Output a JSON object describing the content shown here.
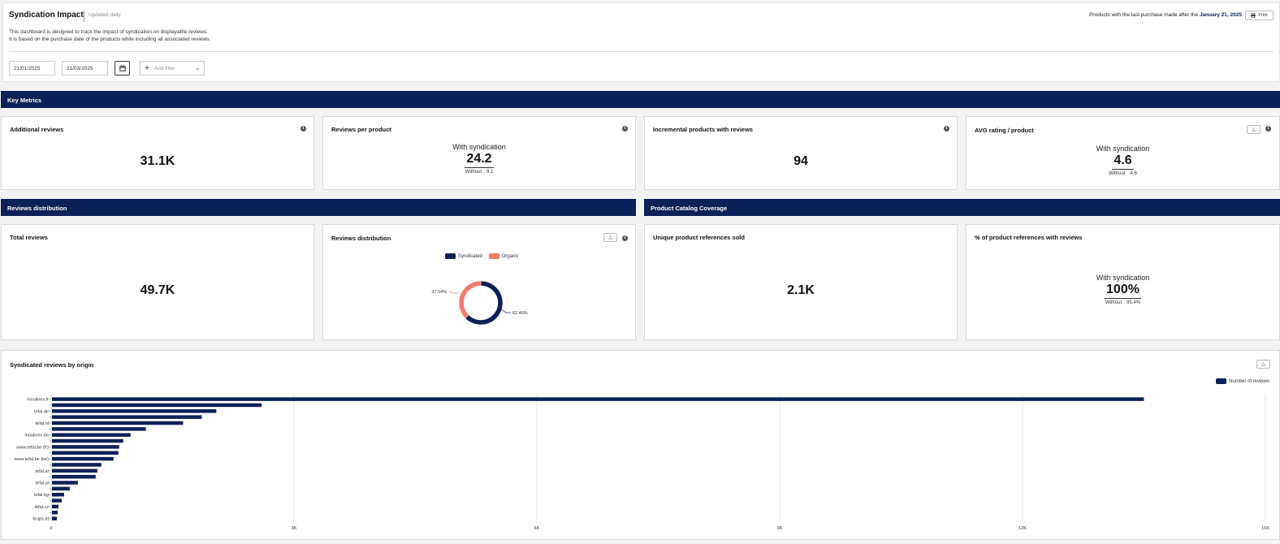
{
  "header": {
    "title": "Syndication Impact",
    "updated": "Updated daily",
    "description_line1": "This dashboard is designed to track the impact of syndication on displayable reviews.",
    "description_line2": "It is based on the purchase date of the products while including all associated reviews.",
    "purchase_text": "Products with the last purchase made after the",
    "purchase_date": "January 21, 2025",
    "print_label": "Print"
  },
  "filters": {
    "start_date": "21/01/2025",
    "end_date": "21/03/2025",
    "add_filter_placeholder": "Add filter"
  },
  "sections": {
    "key_metrics": "Key Metrics",
    "reviews_distribution": "Reviews distribution",
    "catalog_coverage": "Product Catalog Coverage"
  },
  "cards": {
    "additional_reviews": {
      "title": "Additional reviews",
      "value": "31.1K"
    },
    "reviews_per_product": {
      "title": "Reviews per product",
      "with_label": "With syndication",
      "value": "24.2",
      "without_label": "Without",
      "without_value": "9.1"
    },
    "incremental_products": {
      "title": "Incremental products with reviews",
      "value": "94"
    },
    "avg_rating": {
      "title": "AVG rating / product",
      "with_label": "With syndication",
      "value": "4.6",
      "without_label": "Without",
      "without_value": "4.6"
    },
    "total_reviews": {
      "title": "Total reviews",
      "value": "49.7K"
    },
    "distribution": {
      "title": "Reviews distribution",
      "legend_syndicated": "Syndicated",
      "legend_organic": "Organic",
      "organic_pct_label": "37.54%",
      "syndicated_pct_label": "62.46%"
    },
    "unique_refs": {
      "title": "Unique product references sold",
      "value": "2.1K"
    },
    "pct_refs": {
      "title": "% of product references with reviews",
      "with_label": "With syndication",
      "value": "100%",
      "without_label": "Without",
      "without_value": "95.4%"
    },
    "origin": {
      "title": "Syndicated reviews by origin",
      "legend": "Number of reviews"
    }
  },
  "colors": {
    "navy": "#0b2157",
    "organic": "#f47a6b"
  },
  "chart_data": [
    {
      "type": "pie",
      "title": "Reviews distribution",
      "labels": [
        "Syndicated",
        "Organic"
      ],
      "values": [
        62.46,
        37.54
      ]
    },
    {
      "type": "bar",
      "orientation": "horizontal",
      "title": "Syndicated reviews by origin",
      "legend": [
        "Number of reviews"
      ],
      "legend_position": "top-right",
      "xlim": [
        0,
        15000
      ],
      "x_ticks": [
        "0",
        "3K",
        "6K",
        "9K",
        "12K",
        "15K"
      ],
      "categories": [
        "moulinex.fr",
        "",
        "tefal.de",
        "",
        "tefal.nl",
        "",
        "moulinex.be",
        "",
        "www.tefal.be (fr)",
        "",
        "www.tefal.be (be)",
        "",
        "tefal.at",
        "",
        "tefal.pl",
        "",
        "tefal.bg",
        "",
        "tefal.cz",
        "",
        "krups.at"
      ],
      "values": [
        13500,
        2600,
        2040,
        1860,
        1630,
        1170,
        980,
        890,
        840,
        830,
        770,
        620,
        570,
        550,
        330,
        230,
        160,
        130,
        90,
        80,
        70
      ]
    }
  ]
}
